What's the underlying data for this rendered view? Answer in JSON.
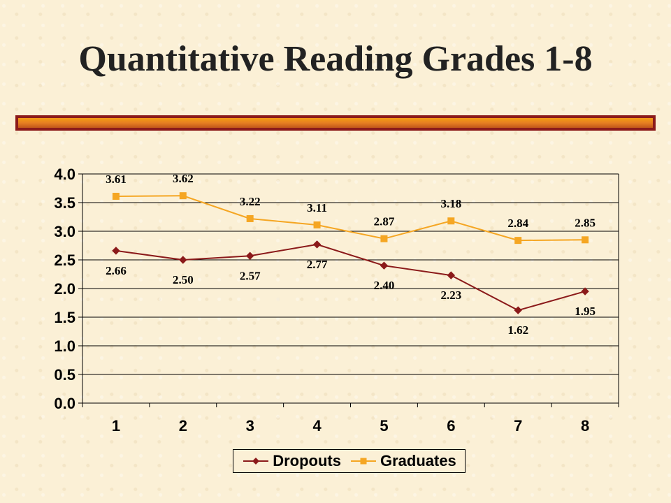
{
  "slide": {
    "title": "Quantitative Reading Grades 1-8"
  },
  "colors": {
    "dropouts": "#8b1a1a",
    "graduates": "#f5a623",
    "gridline": "#000000",
    "rule_border": "#8b1a1a"
  },
  "chart_data": {
    "type": "line",
    "categories": [
      "1",
      "2",
      "3",
      "4",
      "5",
      "6",
      "7",
      "8"
    ],
    "ylim": [
      0,
      4
    ],
    "yticks": [
      "0.0",
      "0.5",
      "1.0",
      "1.5",
      "2.0",
      "2.5",
      "3.0",
      "3.5",
      "4.0"
    ],
    "grid": true,
    "legend_position": "bottom",
    "series": [
      {
        "name": "Dropouts",
        "values": [
          2.66,
          2.5,
          2.57,
          2.77,
          2.4,
          2.23,
          1.62,
          1.95
        ],
        "labels": [
          "2.66",
          "2.50",
          "2.57",
          "2.77",
          "2.40",
          "2.23",
          "1.62",
          "1.95"
        ],
        "marker": "diamond"
      },
      {
        "name": "Graduates",
        "values": [
          3.61,
          3.62,
          3.22,
          3.11,
          2.87,
          3.18,
          2.84,
          2.85
        ],
        "labels": [
          "3.61",
          "3.62",
          "3.22",
          "3.11",
          "2.87",
          "3.18",
          "2.84",
          "2.85"
        ],
        "marker": "square"
      }
    ]
  }
}
